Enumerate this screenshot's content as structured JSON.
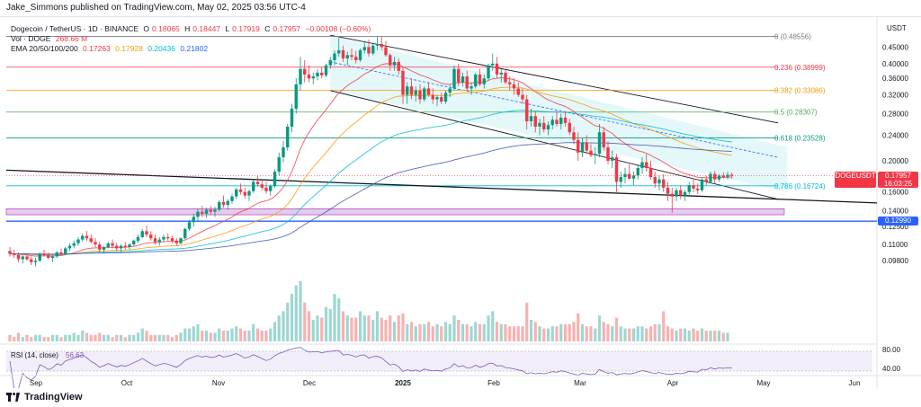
{
  "header": {
    "publisher": "Jake_Simmons published on TradingView.com, May 02, 2025 03:56 UTC-4"
  },
  "legend": {
    "symbol": "Dogecoin / TetherUS · 1D · BINANCE",
    "ohlc": {
      "o_label": "O",
      "o": "0.18065",
      "h_label": "H",
      "h": "0.18447",
      "l_label": "L",
      "l": "0.17919",
      "c_label": "C",
      "c": "0.17957",
      "change": "−0.00108 (−0.60%)"
    },
    "vol_label": "Vol · DOGE",
    "vol_value": "268.66 M",
    "ema_label": "EMA 20/50/100/200",
    "ema_values": [
      "0.17263",
      "0.17928",
      "0.20436",
      "0.21802"
    ]
  },
  "footer": {
    "logo_text": "TradingView"
  },
  "chart_data": {
    "type": "candlestick",
    "symbol": "DOGEUSDT",
    "axis_unit": "USDT",
    "y_scale": "log",
    "ylim": [
      0.092,
      0.54
    ],
    "y_ticks": [
      "0.45000",
      "0.40000",
      "0.36000",
      "0.32000",
      "0.28000",
      "0.24000",
      "0.20000",
      "0.16000",
      "0.14000",
      "0.12500",
      "0.11000",
      "0.09800"
    ],
    "x_ticks": [
      "Sep",
      "Oct",
      "Nov",
      "Dec",
      "2025",
      "Feb",
      "Mar",
      "Apr",
      "May",
      "Jun"
    ],
    "last_price": {
      "label": "DOGEUSDT",
      "value": "0.17957",
      "countdown": "16:03:25",
      "color": "#f23645"
    },
    "support_level": {
      "value": "0.12990",
      "color": "#2962ff"
    },
    "fib_levels": [
      {
        "label": "0 (0.48556)",
        "value": 0.48556,
        "color": "#787b86"
      },
      {
        "label": "0.236 (0.38999)",
        "value": 0.38999,
        "color": "#f23645"
      },
      {
        "label": "0.382 (0.33086)",
        "value": 0.33086,
        "color": "#ff9800"
      },
      {
        "label": "0.5 (0.28307)",
        "value": 0.28307,
        "color": "#4caf50"
      },
      {
        "label": "0.618 (0.23528)",
        "value": 0.23528,
        "color": "#089981"
      },
      {
        "label": "0.786 (0.16724)",
        "value": 0.16724,
        "color": "#00bcd4"
      }
    ],
    "candles": [
      [
        0.105,
        0.108,
        0.101,
        0.103
      ],
      [
        0.103,
        0.106,
        0.1,
        0.102
      ],
      [
        0.102,
        0.104,
        0.097,
        0.099
      ],
      [
        0.099,
        0.102,
        0.096,
        0.101
      ],
      [
        0.101,
        0.103,
        0.098,
        0.099
      ],
      [
        0.099,
        0.101,
        0.095,
        0.097
      ],
      [
        0.097,
        0.1,
        0.094,
        0.098
      ],
      [
        0.098,
        0.104,
        0.097,
        0.103
      ],
      [
        0.103,
        0.106,
        0.101,
        0.102
      ],
      [
        0.102,
        0.104,
        0.099,
        0.1
      ],
      [
        0.1,
        0.102,
        0.097,
        0.101
      ],
      [
        0.101,
        0.105,
        0.1,
        0.104
      ],
      [
        0.104,
        0.107,
        0.102,
        0.103
      ],
      [
        0.103,
        0.108,
        0.102,
        0.107
      ],
      [
        0.107,
        0.111,
        0.105,
        0.109
      ],
      [
        0.109,
        0.113,
        0.107,
        0.111
      ],
      [
        0.111,
        0.116,
        0.109,
        0.114
      ],
      [
        0.114,
        0.119,
        0.112,
        0.117
      ],
      [
        0.117,
        0.121,
        0.113,
        0.115
      ],
      [
        0.115,
        0.118,
        0.111,
        0.112
      ],
      [
        0.112,
        0.115,
        0.108,
        0.11
      ],
      [
        0.11,
        0.112,
        0.104,
        0.106
      ],
      [
        0.106,
        0.109,
        0.103,
        0.108
      ],
      [
        0.108,
        0.112,
        0.107,
        0.111
      ],
      [
        0.111,
        0.114,
        0.107,
        0.109
      ],
      [
        0.109,
        0.111,
        0.105,
        0.107
      ],
      [
        0.107,
        0.11,
        0.104,
        0.109
      ],
      [
        0.109,
        0.112,
        0.106,
        0.108
      ],
      [
        0.108,
        0.111,
        0.106,
        0.11
      ],
      [
        0.11,
        0.114,
        0.109,
        0.113
      ],
      [
        0.113,
        0.118,
        0.111,
        0.116
      ],
      [
        0.116,
        0.123,
        0.115,
        0.121
      ],
      [
        0.121,
        0.126,
        0.116,
        0.118
      ],
      [
        0.118,
        0.121,
        0.113,
        0.115
      ],
      [
        0.115,
        0.118,
        0.11,
        0.112
      ],
      [
        0.112,
        0.116,
        0.109,
        0.114
      ],
      [
        0.114,
        0.118,
        0.112,
        0.116
      ],
      [
        0.116,
        0.119,
        0.113,
        0.115
      ],
      [
        0.115,
        0.117,
        0.111,
        0.113
      ],
      [
        0.113,
        0.115,
        0.109,
        0.111
      ],
      [
        0.111,
        0.116,
        0.11,
        0.115
      ],
      [
        0.115,
        0.124,
        0.114,
        0.123
      ],
      [
        0.123,
        0.131,
        0.121,
        0.129
      ],
      [
        0.129,
        0.137,
        0.125,
        0.134
      ],
      [
        0.134,
        0.142,
        0.13,
        0.139
      ],
      [
        0.139,
        0.145,
        0.134,
        0.137
      ],
      [
        0.137,
        0.143,
        0.133,
        0.141
      ],
      [
        0.141,
        0.145,
        0.136,
        0.139
      ],
      [
        0.139,
        0.144,
        0.134,
        0.141
      ],
      [
        0.141,
        0.151,
        0.139,
        0.149
      ],
      [
        0.149,
        0.156,
        0.143,
        0.146
      ],
      [
        0.146,
        0.152,
        0.141,
        0.15
      ],
      [
        0.15,
        0.158,
        0.147,
        0.155
      ],
      [
        0.155,
        0.165,
        0.152,
        0.163
      ],
      [
        0.163,
        0.17,
        0.157,
        0.16
      ],
      [
        0.16,
        0.165,
        0.153,
        0.156
      ],
      [
        0.156,
        0.163,
        0.15,
        0.161
      ],
      [
        0.161,
        0.175,
        0.159,
        0.172
      ],
      [
        0.172,
        0.18,
        0.166,
        0.169
      ],
      [
        0.169,
        0.176,
        0.162,
        0.165
      ],
      [
        0.165,
        0.172,
        0.158,
        0.161
      ],
      [
        0.161,
        0.169,
        0.156,
        0.167
      ],
      [
        0.167,
        0.188,
        0.165,
        0.185
      ],
      [
        0.185,
        0.212,
        0.18,
        0.205
      ],
      [
        0.205,
        0.23,
        0.198,
        0.22
      ],
      [
        0.22,
        0.26,
        0.215,
        0.255
      ],
      [
        0.255,
        0.3,
        0.245,
        0.29
      ],
      [
        0.29,
        0.36,
        0.28,
        0.345
      ],
      [
        0.345,
        0.42,
        0.33,
        0.385
      ],
      [
        0.385,
        0.41,
        0.35,
        0.37
      ],
      [
        0.37,
        0.395,
        0.35,
        0.36
      ],
      [
        0.36,
        0.375,
        0.345,
        0.365
      ],
      [
        0.365,
        0.385,
        0.355,
        0.375
      ],
      [
        0.375,
        0.39,
        0.36,
        0.368
      ],
      [
        0.368,
        0.4,
        0.362,
        0.395
      ],
      [
        0.395,
        0.42,
        0.385,
        0.41
      ],
      [
        0.41,
        0.44,
        0.395,
        0.43
      ],
      [
        0.43,
        0.48,
        0.42,
        0.44
      ],
      [
        0.44,
        0.455,
        0.405,
        0.415
      ],
      [
        0.415,
        0.435,
        0.395,
        0.425
      ],
      [
        0.425,
        0.445,
        0.41,
        0.42
      ],
      [
        0.42,
        0.438,
        0.4,
        0.41
      ],
      [
        0.41,
        0.445,
        0.405,
        0.44
      ],
      [
        0.44,
        0.47,
        0.43,
        0.45
      ],
      [
        0.45,
        0.475,
        0.42,
        0.43
      ],
      [
        0.43,
        0.46,
        0.425,
        0.455
      ],
      [
        0.455,
        0.485,
        0.44,
        0.46
      ],
      [
        0.46,
        0.485,
        0.44,
        0.45
      ],
      [
        0.45,
        0.47,
        0.42,
        0.425
      ],
      [
        0.425,
        0.43,
        0.38,
        0.395
      ],
      [
        0.395,
        0.42,
        0.38,
        0.405
      ],
      [
        0.405,
        0.415,
        0.37,
        0.38
      ],
      [
        0.38,
        0.39,
        0.3,
        0.32
      ],
      [
        0.32,
        0.35,
        0.3,
        0.34
      ],
      [
        0.34,
        0.36,
        0.31,
        0.32
      ],
      [
        0.32,
        0.34,
        0.305,
        0.33
      ],
      [
        0.33,
        0.345,
        0.3,
        0.31
      ],
      [
        0.31,
        0.34,
        0.305,
        0.335
      ],
      [
        0.335,
        0.35,
        0.315,
        0.32
      ],
      [
        0.32,
        0.335,
        0.3,
        0.31
      ],
      [
        0.31,
        0.32,
        0.295,
        0.315
      ],
      [
        0.315,
        0.325,
        0.3,
        0.305
      ],
      [
        0.305,
        0.33,
        0.3,
        0.325
      ],
      [
        0.325,
        0.345,
        0.315,
        0.335
      ],
      [
        0.335,
        0.395,
        0.33,
        0.385
      ],
      [
        0.385,
        0.4,
        0.34,
        0.35
      ],
      [
        0.35,
        0.375,
        0.34,
        0.365
      ],
      [
        0.365,
        0.38,
        0.33,
        0.335
      ],
      [
        0.335,
        0.35,
        0.32,
        0.34
      ],
      [
        0.34,
        0.375,
        0.335,
        0.37
      ],
      [
        0.37,
        0.385,
        0.34,
        0.345
      ],
      [
        0.345,
        0.37,
        0.335,
        0.36
      ],
      [
        0.36,
        0.4,
        0.355,
        0.395
      ],
      [
        0.395,
        0.43,
        0.38,
        0.4
      ],
      [
        0.4,
        0.42,
        0.36,
        0.37
      ],
      [
        0.37,
        0.385,
        0.35,
        0.375
      ],
      [
        0.375,
        0.385,
        0.345,
        0.35
      ],
      [
        0.35,
        0.365,
        0.33,
        0.345
      ],
      [
        0.345,
        0.36,
        0.32,
        0.335
      ],
      [
        0.335,
        0.35,
        0.315,
        0.32
      ],
      [
        0.32,
        0.335,
        0.3,
        0.31
      ],
      [
        0.31,
        0.32,
        0.25,
        0.265
      ],
      [
        0.265,
        0.29,
        0.255,
        0.275
      ],
      [
        0.275,
        0.285,
        0.245,
        0.255
      ],
      [
        0.255,
        0.27,
        0.24,
        0.262
      ],
      [
        0.262,
        0.275,
        0.245,
        0.25
      ],
      [
        0.25,
        0.265,
        0.24,
        0.258
      ],
      [
        0.258,
        0.275,
        0.25,
        0.268
      ],
      [
        0.268,
        0.285,
        0.255,
        0.26
      ],
      [
        0.26,
        0.28,
        0.25,
        0.272
      ],
      [
        0.272,
        0.285,
        0.255,
        0.262
      ],
      [
        0.262,
        0.27,
        0.24,
        0.245
      ],
      [
        0.245,
        0.255,
        0.225,
        0.232
      ],
      [
        0.232,
        0.245,
        0.2,
        0.212
      ],
      [
        0.212,
        0.235,
        0.205,
        0.228
      ],
      [
        0.228,
        0.24,
        0.21,
        0.215
      ],
      [
        0.215,
        0.225,
        0.205,
        0.208
      ],
      [
        0.208,
        0.22,
        0.195,
        0.21
      ],
      [
        0.21,
        0.26,
        0.205,
        0.245
      ],
      [
        0.245,
        0.255,
        0.215,
        0.22
      ],
      [
        0.22,
        0.23,
        0.195,
        0.2
      ],
      [
        0.2,
        0.215,
        0.19,
        0.205
      ],
      [
        0.205,
        0.21,
        0.16,
        0.172
      ],
      [
        0.172,
        0.185,
        0.165,
        0.178
      ],
      [
        0.178,
        0.19,
        0.17,
        0.182
      ],
      [
        0.182,
        0.195,
        0.175,
        0.176
      ],
      [
        0.176,
        0.185,
        0.168,
        0.18
      ],
      [
        0.18,
        0.195,
        0.175,
        0.19
      ],
      [
        0.19,
        0.205,
        0.182,
        0.198
      ],
      [
        0.198,
        0.21,
        0.185,
        0.19
      ],
      [
        0.19,
        0.2,
        0.175,
        0.178
      ],
      [
        0.178,
        0.185,
        0.165,
        0.17
      ],
      [
        0.17,
        0.18,
        0.162,
        0.175
      ],
      [
        0.175,
        0.182,
        0.16,
        0.165
      ],
      [
        0.165,
        0.172,
        0.15,
        0.158
      ],
      [
        0.158,
        0.165,
        0.138,
        0.155
      ],
      [
        0.155,
        0.165,
        0.15,
        0.162
      ],
      [
        0.162,
        0.168,
        0.152,
        0.156
      ],
      [
        0.156,
        0.162,
        0.15,
        0.16
      ],
      [
        0.16,
        0.172,
        0.157,
        0.168
      ],
      [
        0.168,
        0.175,
        0.16,
        0.164
      ],
      [
        0.164,
        0.17,
        0.158,
        0.162
      ],
      [
        0.162,
        0.178,
        0.16,
        0.175
      ],
      [
        0.175,
        0.18,
        0.168,
        0.172
      ],
      [
        0.172,
        0.185,
        0.17,
        0.182
      ],
      [
        0.182,
        0.186,
        0.17,
        0.175
      ],
      [
        0.175,
        0.182,
        0.172,
        0.18
      ],
      [
        0.18,
        0.184,
        0.176,
        0.178
      ],
      [
        0.178,
        0.185,
        0.175,
        0.181
      ],
      [
        0.181,
        0.184,
        0.176,
        0.1796
      ]
    ],
    "volumes": [
      3,
      2,
      4,
      2,
      3,
      2,
      3,
      3,
      2,
      2,
      3,
      3,
      2,
      3,
      3,
      4,
      3,
      5,
      4,
      3,
      3,
      4,
      3,
      3,
      2,
      3,
      3,
      2,
      3,
      3,
      4,
      6,
      5,
      3,
      3,
      3,
      3,
      3,
      2,
      3,
      4,
      6,
      6,
      7,
      8,
      5,
      5,
      4,
      4,
      6,
      5,
      5,
      6,
      7,
      6,
      5,
      5,
      8,
      6,
      5,
      5,
      6,
      9,
      12,
      14,
      18,
      22,
      26,
      28,
      18,
      14,
      10,
      12,
      11,
      16,
      15,
      22,
      20,
      14,
      12,
      11,
      11,
      14,
      12,
      12,
      10,
      14,
      11,
      10,
      12,
      9,
      12,
      13,
      8,
      9,
      7,
      8,
      8,
      9,
      7,
      8,
      7,
      9,
      8,
      12,
      10,
      8,
      8,
      7,
      9,
      8,
      8,
      12,
      14,
      9,
      8,
      8,
      7,
      7,
      7,
      7,
      18,
      10,
      9,
      7,
      6,
      6,
      7,
      7,
      8,
      8,
      8,
      9,
      13,
      8,
      7,
      7,
      6,
      12,
      9,
      8,
      7,
      11,
      7,
      6,
      6,
      6,
      7,
      7,
      6,
      7,
      8,
      8,
      14,
      7,
      6,
      5,
      6,
      6,
      5,
      6,
      5,
      6,
      5,
      5,
      5,
      5,
      4,
      4
    ]
  }
}
